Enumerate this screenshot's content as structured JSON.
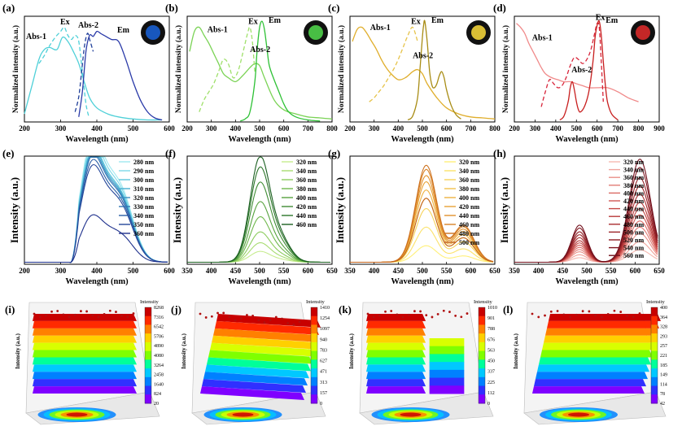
{
  "figure": {
    "panel_letters": [
      "(a)",
      "(b)",
      "(c)",
      "(d)",
      "(e)",
      "(f)",
      "(g)",
      "(h)",
      "(i)",
      "(j)",
      "(k)",
      "(l)"
    ]
  },
  "chart_data": [
    {
      "panel": "(a)",
      "type": "line",
      "xlabel": "Wavelength (nm)",
      "ylabel": "Normalized intensity (a.u.)",
      "xlim": [
        200,
        600
      ],
      "ylim": [
        0,
        1.05
      ],
      "xticks": [
        200,
        300,
        400,
        500,
        600
      ],
      "inset_color": "#1a5fd0",
      "series": [
        {
          "name": "Abs-1",
          "color": "#4fd0d8",
          "dash": false,
          "x": [
            200,
            220,
            240,
            255,
            270,
            290,
            305,
            320,
            335,
            350,
            365,
            380,
            400,
            430,
            460,
            500,
            540,
            580
          ],
          "y": [
            0.08,
            0.35,
            0.62,
            0.72,
            0.74,
            0.72,
            0.84,
            0.8,
            0.7,
            0.58,
            0.4,
            0.24,
            0.14,
            0.08,
            0.05,
            0.03,
            0.02,
            0.02
          ]
        },
        {
          "name": "Ex",
          "color": "#4fd0d8",
          "dash": true,
          "x": [
            240,
            255,
            270,
            285,
            300,
            310,
            320,
            330,
            340,
            350,
            360,
            370,
            378
          ],
          "y": [
            0.58,
            0.66,
            0.76,
            0.84,
            0.9,
            0.94,
            0.86,
            0.82,
            0.86,
            0.8,
            0.5,
            0.18,
            0.05
          ]
        },
        {
          "name": "Abs-2",
          "color": "#1f3f9a",
          "dash": true,
          "x": [
            340,
            350,
            358,
            366,
            374,
            380,
            390
          ],
          "y": [
            0.1,
            0.25,
            0.5,
            0.76,
            0.88,
            0.82,
            0.7
          ]
        },
        {
          "name": "Em",
          "color": "#2a3aa8",
          "dash": false,
          "x": [
            350,
            360,
            370,
            380,
            390,
            400,
            410,
            420,
            440,
            460,
            480,
            500,
            520,
            540,
            560,
            580
          ],
          "y": [
            0.05,
            0.3,
            0.7,
            0.86,
            0.85,
            0.9,
            0.88,
            0.86,
            0.82,
            0.8,
            0.62,
            0.4,
            0.22,
            0.1,
            0.04,
            0.02
          ]
        }
      ],
      "annotations": [
        "Abs-1",
        "Ex",
        "Abs-2",
        "Em"
      ]
    },
    {
      "panel": "(b)",
      "type": "line",
      "xlabel": "Wavelength (nm)",
      "ylabel": "Normalized intensity (a.u.)",
      "xlim": [
        200,
        800
      ],
      "ylim": [
        0,
        1.05
      ],
      "xticks": [
        200,
        300,
        400,
        500,
        600,
        700,
        800
      ],
      "inset_color": "#4fd14a",
      "series": [
        {
          "name": "Abs-1",
          "color": "#7bd356",
          "dash": false,
          "x": [
            210,
            230,
            250,
            270,
            290,
            310,
            330,
            350,
            370,
            400,
            430,
            460,
            480,
            500,
            520,
            560,
            600,
            650,
            700,
            750,
            800
          ],
          "y": [
            0.7,
            0.9,
            0.94,
            0.86,
            0.78,
            0.68,
            0.58,
            0.48,
            0.44,
            0.4,
            0.46,
            0.54,
            0.58,
            0.56,
            0.44,
            0.22,
            0.12,
            0.08,
            0.05,
            0.04,
            0.03
          ]
        },
        {
          "name": "Ex",
          "color": "#9fe06a",
          "dash": true,
          "x": [
            250,
            270,
            290,
            310,
            330,
            350,
            370,
            390,
            410,
            430,
            450,
            460,
            470,
            480
          ],
          "y": [
            0.1,
            0.22,
            0.3,
            0.38,
            0.5,
            0.62,
            0.58,
            0.44,
            0.5,
            0.68,
            0.88,
            0.94,
            0.8,
            0.5
          ]
        },
        {
          "name": "Em",
          "color": "#2ec135",
          "dash": false,
          "x": [
            420,
            440,
            460,
            480,
            490,
            500,
            510,
            520,
            530,
            540,
            560,
            580,
            600,
            620,
            650,
            700,
            750
          ],
          "y": [
            0.01,
            0.03,
            0.1,
            0.4,
            0.72,
            0.94,
            1.0,
            0.92,
            0.74,
            0.56,
            0.42,
            0.3,
            0.18,
            0.1,
            0.05,
            0.02,
            0.01
          ]
        }
      ],
      "annotations": [
        "Abs-1",
        "Ex",
        "Em",
        "Abs-2"
      ]
    },
    {
      "panel": "(c)",
      "type": "line",
      "xlabel": "Wavelength (nm)",
      "ylabel": "Normalized intensity (a.u.)",
      "xlim": [
        200,
        800
      ],
      "ylim": [
        0,
        1.05
      ],
      "xticks": [
        200,
        300,
        400,
        500,
        600,
        700,
        800
      ],
      "inset_color": "#f0d23a",
      "series": [
        {
          "name": "Abs-1",
          "color": "#e0ae2c",
          "dash": false,
          "x": [
            210,
            230,
            250,
            270,
            290,
            310,
            330,
            350,
            370,
            400,
            430,
            460,
            480,
            500,
            520,
            560,
            600,
            650,
            700,
            750,
            800
          ],
          "y": [
            0.8,
            0.92,
            0.94,
            0.88,
            0.8,
            0.72,
            0.62,
            0.54,
            0.48,
            0.42,
            0.44,
            0.5,
            0.52,
            0.48,
            0.38,
            0.24,
            0.14,
            0.08,
            0.05,
            0.04,
            0.03
          ]
        },
        {
          "name": "Ex",
          "color": "#e6c34a",
          "dash": true,
          "x": [
            280,
            300,
            320,
            340,
            360,
            380,
            400,
            420,
            440,
            460,
            480
          ],
          "y": [
            0.2,
            0.24,
            0.3,
            0.36,
            0.44,
            0.52,
            0.62,
            0.74,
            0.86,
            0.94,
            0.8
          ]
        },
        {
          "name": "Em",
          "color": "#a88c14",
          "dash": false,
          "x": [
            440,
            460,
            480,
            490,
            500,
            505,
            510,
            520,
            530,
            540,
            550,
            560,
            570,
            580,
            590,
            600,
            620,
            640,
            660
          ],
          "y": [
            0.02,
            0.06,
            0.24,
            0.52,
            0.84,
            0.96,
            1.0,
            0.8,
            0.5,
            0.36,
            0.34,
            0.38,
            0.46,
            0.5,
            0.44,
            0.32,
            0.16,
            0.07,
            0.03
          ]
        }
      ],
      "annotations": [
        "Abs-1",
        "Ex",
        "Em",
        "Abs-2"
      ]
    },
    {
      "panel": "(d)",
      "type": "line",
      "xlabel": "Wavelength (nm)",
      "ylabel": "Normalized intensity (a.u.)",
      "xlim": [
        200,
        900
      ],
      "ylim": [
        0,
        1.05
      ],
      "xticks": [
        200,
        300,
        400,
        500,
        600,
        700,
        800,
        900
      ],
      "inset_color": "#d82a2a",
      "series": [
        {
          "name": "Abs-1",
          "color": "#f08a8a",
          "dash": false,
          "x": [
            210,
            230,
            250,
            270,
            290,
            310,
            330,
            350,
            380,
            410,
            440,
            470,
            500,
            530,
            560,
            600,
            650,
            700,
            750,
            800
          ],
          "y": [
            0.98,
            0.94,
            0.88,
            0.78,
            0.7,
            0.62,
            0.54,
            0.48,
            0.44,
            0.42,
            0.4,
            0.4,
            0.38,
            0.36,
            0.34,
            0.34,
            0.34,
            0.3,
            0.24,
            0.2
          ]
        },
        {
          "name": "Ex",
          "color": "#d8243a",
          "dash": true,
          "x": [
            330,
            350,
            370,
            390,
            410,
            430,
            450,
            470,
            490,
            510,
            530,
            550,
            570,
            590,
            600,
            610,
            620,
            630
          ],
          "y": [
            0.15,
            0.3,
            0.42,
            0.38,
            0.34,
            0.36,
            0.44,
            0.56,
            0.64,
            0.62,
            0.58,
            0.62,
            0.72,
            0.9,
            0.98,
            0.94,
            0.6,
            0.2
          ]
        },
        {
          "name": "Em",
          "color": "#c81e1e",
          "dash": false,
          "x": [
            420,
            440,
            460,
            470,
            480,
            490,
            500,
            510,
            520,
            540,
            560,
            580,
            590,
            600,
            610,
            620,
            630,
            640,
            650,
            670,
            700
          ],
          "y": [
            0.02,
            0.06,
            0.2,
            0.34,
            0.4,
            0.32,
            0.2,
            0.12,
            0.1,
            0.16,
            0.3,
            0.6,
            0.84,
            0.96,
            1.0,
            0.86,
            0.6,
            0.36,
            0.2,
            0.08,
            0.02
          ]
        }
      ],
      "annotations": [
        "Abs-1",
        "Ex",
        "Em",
        "Abs-2"
      ]
    },
    {
      "panel": "(e)",
      "type": "line",
      "xlabel": "Wavelength (nm)",
      "ylabel": "Intensity (a.u.)",
      "xlim": [
        200,
        600
      ],
      "ylim": [
        0,
        1.05
      ],
      "xticks": [
        200,
        300,
        400,
        500,
        600
      ],
      "legend": [
        "280 nm",
        "290 nm",
        "300 nm",
        "310 nm",
        "320 nm",
        "330 nm",
        "340 nm",
        "350 nm",
        "360 nm"
      ],
      "colors": [
        "#9fe8f0",
        "#7cd8e8",
        "#5cc4dc",
        "#46aed0",
        "#3a8fc2",
        "#2f74b4",
        "#2a5ea6",
        "#24469a",
        "#1e308c"
      ],
      "peak_heights": [
        0.96,
        0.92,
        0.88,
        0.86,
        0.84,
        0.82,
        0.78,
        0.74,
        0.36
      ]
    },
    {
      "panel": "(f)",
      "type": "line",
      "xlabel": "Wavelength (nm)",
      "ylabel": "Intensity (a.u.)",
      "xlim": [
        350,
        650
      ],
      "ylim": [
        0,
        1.05
      ],
      "xticks": [
        350,
        400,
        450,
        500,
        550,
        600,
        650
      ],
      "legend": [
        "320 nm",
        "340 nm",
        "360 nm",
        "380 nm",
        "400 nm",
        "420 nm",
        "440 nm",
        "460 nm"
      ],
      "colors": [
        "#c6ec8e",
        "#a8dc72",
        "#8ccc5e",
        "#6fb84c",
        "#56a23e",
        "#3f8c34",
        "#2c762a",
        "#1c6022"
      ],
      "peak_heights": [
        0.1,
        0.18,
        0.28,
        0.42,
        0.56,
        0.74,
        0.88,
        0.98
      ],
      "peak_wavelength": 500
    },
    {
      "panel": "(g)",
      "type": "line",
      "xlabel": "Wavelength (nm)",
      "ylabel": "Intensity (a.u.)",
      "xlim": [
        350,
        650
      ],
      "ylim": [
        0,
        1.05
      ],
      "xticks": [
        350,
        400,
        450,
        500,
        550,
        600,
        650
      ],
      "legend": [
        "320 nm",
        "340 nm",
        "360 nm",
        "380 nm",
        "400 nm",
        "420 nm",
        "440 nm",
        "460 nm",
        "480 nm",
        "500 nm"
      ],
      "colors": [
        "#fff07a",
        "#fbe26a",
        "#f6d25a",
        "#f2c24c",
        "#eeb240",
        "#e8a236",
        "#e2922e",
        "#d88226",
        "#ce7220",
        "#c2621a"
      ],
      "peak_heights": [
        0.16,
        0.34,
        0.52,
        0.62,
        0.7,
        0.78,
        0.84,
        0.9,
        0.94,
        0.62
      ],
      "peak_wavelength": 508
    },
    {
      "panel": "(h)",
      "type": "line",
      "xlabel": "Wavelength (nm)",
      "ylabel": "Intensity (a.u.)",
      "xlim": [
        350,
        650
      ],
      "ylim": [
        0,
        1.05
      ],
      "xticks": [
        350,
        400,
        450,
        500,
        550,
        600,
        650
      ],
      "legend": [
        "320 nm",
        "340 nm",
        "360 nm",
        "380 nm",
        "400 nm",
        "420 nm",
        "440 nm",
        "460 nm",
        "480 nm",
        "500 nm",
        "520 nm",
        "540 nm",
        "560 nm"
      ],
      "colors": [
        "#f6b8b0",
        "#f0a49c",
        "#ea9088",
        "#e27c76",
        "#da6a64",
        "#d05854",
        "#c44846",
        "#b83a3a",
        "#aa2e30",
        "#9c2428",
        "#8e1c22",
        "#801620",
        "#72101c"
      ],
      "peak_heights": [
        0.12,
        0.2,
        0.28,
        0.34,
        0.4,
        0.46,
        0.52,
        0.58,
        0.66,
        0.74,
        0.82,
        0.92,
        1.0
      ],
      "peak_wavelength": 610
    },
    {
      "panel": "(i)",
      "type": "heatmap",
      "zlabel": "Intensity (a.u.)",
      "colorbar_title": "Intensity",
      "colorbar_ticks": [
        "8268",
        "7316",
        "6542",
        "5706",
        "4890",
        "4080",
        "3264",
        "2458",
        "1640",
        "824",
        "20"
      ]
    },
    {
      "panel": "(j)",
      "type": "heatmap",
      "zlabel": "Intensity (a.u.)",
      "colorbar_title": "Intensity",
      "colorbar_ticks": [
        "1410",
        "1254",
        "1097",
        "940",
        "783",
        "627",
        "471",
        "313",
        "157",
        "0"
      ]
    },
    {
      "panel": "(k)",
      "type": "heatmap",
      "zlabel": "Intensity (a.u.)",
      "colorbar_title": "Intensity",
      "colorbar_ticks": [
        "1010",
        "901",
        "788",
        "676",
        "563",
        "450",
        "337",
        "225",
        "112",
        "0"
      ]
    },
    {
      "panel": "(l)",
      "type": "heatmap",
      "zlabel": "Intensity (a.u.)",
      "colorbar_title": "Intensity",
      "colorbar_ticks": [
        "400",
        "364",
        "328",
        "293",
        "257",
        "221",
        "185",
        "149",
        "114",
        "78",
        "42"
      ]
    }
  ]
}
